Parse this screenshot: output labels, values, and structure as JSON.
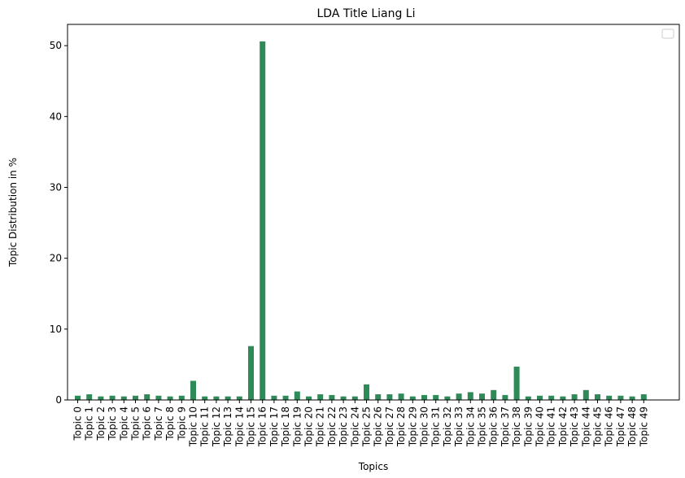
{
  "chart_data": {
    "type": "bar",
    "title": "LDA Title Liang Li",
    "xlabel": "Topics",
    "ylabel": "Topic Distribution in %",
    "ylim": [
      0,
      53
    ],
    "yticks": [
      0,
      10,
      20,
      30,
      40,
      50
    ],
    "grid": false,
    "legend": {
      "placement": "top-right",
      "entries": []
    },
    "bar_color": "#2e8b57",
    "categories": [
      "Topic 0",
      "Topic 1",
      "Topic 2",
      "Topic 3",
      "Topic 4",
      "Topic 5",
      "Topic 6",
      "Topic 7",
      "Topic 8",
      "Topic 9",
      "Topic 10",
      "Topic 11",
      "Topic 12",
      "Topic 13",
      "Topic 14",
      "Topic 15",
      "Topic 16",
      "Topic 17",
      "Topic 18",
      "Topic 19",
      "Topic 20",
      "Topic 21",
      "Topic 22",
      "Topic 23",
      "Topic 24",
      "Topic 25",
      "Topic 26",
      "Topic 27",
      "Topic 28",
      "Topic 29",
      "Topic 30",
      "Topic 31",
      "Topic 32",
      "Topic 33",
      "Topic 34",
      "Topic 35",
      "Topic 36",
      "Topic 37",
      "Topic 38",
      "Topic 39",
      "Topic 40",
      "Topic 41",
      "Topic 42",
      "Topic 43",
      "Topic 44",
      "Topic 45",
      "Topic 46",
      "Topic 47",
      "Topic 48",
      "Topic 49"
    ],
    "values": [
      0.6,
      0.8,
      0.5,
      0.6,
      0.5,
      0.6,
      0.8,
      0.6,
      0.5,
      0.6,
      2.7,
      0.5,
      0.5,
      0.5,
      0.5,
      7.6,
      50.6,
      0.6,
      0.6,
      1.2,
      0.5,
      0.8,
      0.7,
      0.5,
      0.5,
      2.2,
      0.8,
      0.8,
      0.9,
      0.5,
      0.7,
      0.7,
      0.5,
      0.9,
      1.1,
      0.9,
      1.4,
      0.7,
      4.7,
      0.5,
      0.6,
      0.6,
      0.5,
      0.8,
      1.4,
      0.8,
      0.6,
      0.6,
      0.5,
      0.8
    ]
  }
}
